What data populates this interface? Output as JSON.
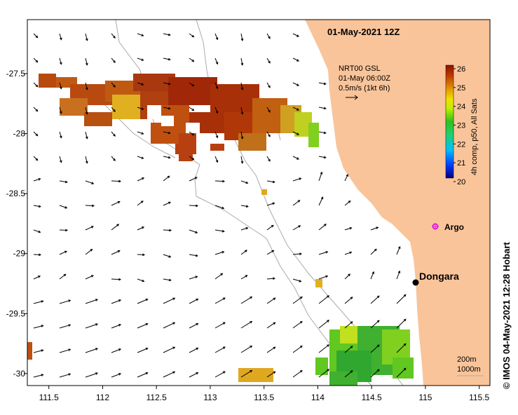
{
  "map": {
    "title": "01-May-2021 12Z",
    "xticks": [
      "111.5",
      "112",
      "112.5",
      "113",
      "113.5",
      "114",
      "114.5",
      "115",
      "115.5"
    ],
    "yticks": [
      "-27.5",
      "-28",
      "-28.5",
      "-29",
      "-29.5",
      "-30"
    ],
    "xlim": [
      111.3,
      115.6
    ],
    "ylim": [
      -30.1,
      -27.05
    ],
    "land_color": "#f9c49a",
    "current_legend": {
      "line1": "NRT00 GSL",
      "line2": "01-May 06:00Z",
      "line3": "0.5m/s (1kt 6h)"
    },
    "colorbar": {
      "label": "4h comp, p50, All Sats",
      "ticks": [
        "26",
        "25",
        "24",
        "23",
        "22",
        "21",
        "20"
      ],
      "range": [
        20,
        26
      ]
    },
    "places": {
      "town": "Dongara",
      "argo": "Argo"
    },
    "isobaths": {
      "line1": "200m",
      "line2": "1000m"
    },
    "credit": "© IMOS 04-May-2021 12:28 Hobart"
  }
}
